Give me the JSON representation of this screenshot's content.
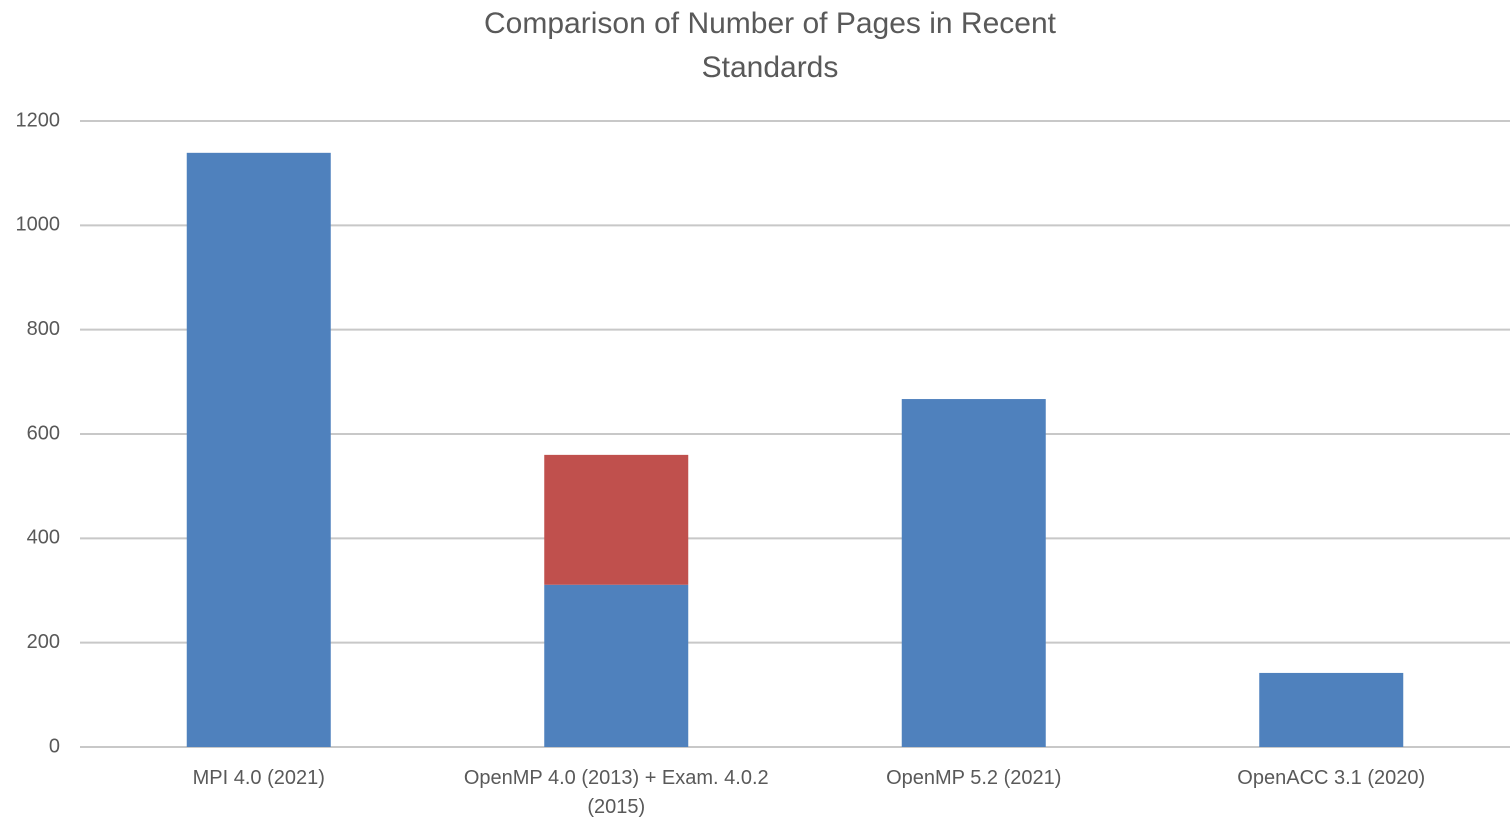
{
  "chart_data": {
    "type": "stacked_bar",
    "title": "Comparison of Number of Pages in Recent Standards",
    "categories": [
      "MPI 4.0 (2021)",
      "OpenMP 4.0 (2013)  + Exam.  4.0.2 (2015)",
      "OpenMP 5.2 (2021)",
      "OpenACC 3.1 (2020)"
    ],
    "series": [
      {
        "color": "#4f81bd",
        "values": [
          1139,
          311,
          667,
          142
        ]
      },
      {
        "color": "#c0504d",
        "values": [
          null,
          249,
          null,
          null
        ]
      }
    ],
    "ylim": [
      0,
      1200
    ],
    "yticks": [
      0,
      200,
      400,
      600,
      800,
      1000,
      1200
    ],
    "grid": true
  }
}
